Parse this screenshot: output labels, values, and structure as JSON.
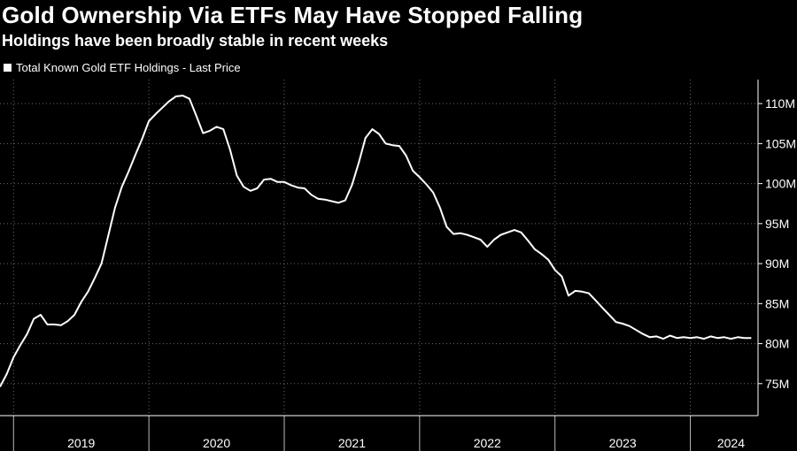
{
  "chart_data": {
    "type": "line",
    "title": "Gold Ownership Via ETFs May Have Stopped Falling",
    "subtitle": "Holdings have been broadly stable in recent weeks",
    "legend": {
      "position": "top-left",
      "entries": [
        "Total Known Gold ETF Holdings - Last Price"
      ]
    },
    "colors": {
      "background": "#000000",
      "line": "#ffffff",
      "grid": "#6b6b6b"
    },
    "grid": true,
    "y_axis": {
      "position": "right",
      "min": 71,
      "max": 113,
      "ticks": [
        75,
        80,
        85,
        90,
        95,
        100,
        105,
        110
      ],
      "tick_labels": [
        "75M",
        "80M",
        "85M",
        "90M",
        "95M",
        "100M",
        "105M",
        "110M"
      ]
    },
    "x_axis": {
      "min": 2018.9,
      "max": 2024.5,
      "year_boundaries": [
        2019,
        2020,
        2021,
        2022,
        2023,
        2024
      ],
      "labels": [
        {
          "text": "2019",
          "at": 2019.5
        },
        {
          "text": "2020",
          "at": 2020.5
        },
        {
          "text": "2021",
          "at": 2021.5
        },
        {
          "text": "2022",
          "at": 2022.5
        },
        {
          "text": "2023",
          "at": 2023.5
        },
        {
          "text": "2024",
          "at": 2024.3
        }
      ]
    },
    "series": [
      {
        "name": "Total Known Gold ETF Holdings - Last Price",
        "unit": "M",
        "x": [
          2018.9,
          2018.95,
          2019.0,
          2019.05,
          2019.1,
          2019.15,
          2019.2,
          2019.25,
          2019.3,
          2019.35,
          2019.4,
          2019.45,
          2019.5,
          2019.55,
          2019.6,
          2019.65,
          2019.7,
          2019.75,
          2019.8,
          2019.85,
          2019.9,
          2019.95,
          2020.0,
          2020.05,
          2020.1,
          2020.15,
          2020.2,
          2020.25,
          2020.3,
          2020.35,
          2020.4,
          2020.45,
          2020.5,
          2020.55,
          2020.6,
          2020.65,
          2020.7,
          2020.75,
          2020.8,
          2020.85,
          2020.9,
          2020.95,
          2021.0,
          2021.05,
          2021.1,
          2021.15,
          2021.2,
          2021.25,
          2021.3,
          2021.35,
          2021.4,
          2021.45,
          2021.5,
          2021.55,
          2021.6,
          2021.65,
          2021.7,
          2021.75,
          2021.8,
          2021.85,
          2021.9,
          2021.95,
          2022.0,
          2022.05,
          2022.1,
          2022.15,
          2022.2,
          2022.25,
          2022.3,
          2022.35,
          2022.4,
          2022.45,
          2022.5,
          2022.55,
          2022.6,
          2022.65,
          2022.7,
          2022.75,
          2022.8,
          2022.85,
          2022.9,
          2022.95,
          2023.0,
          2023.05,
          2023.1,
          2023.15,
          2023.2,
          2023.25,
          2023.3,
          2023.35,
          2023.4,
          2023.45,
          2023.5,
          2023.55,
          2023.6,
          2023.65,
          2023.7,
          2023.75,
          2023.8,
          2023.85,
          2023.9,
          2023.95,
          2024.0,
          2024.05,
          2024.1,
          2024.15,
          2024.2,
          2024.25,
          2024.3,
          2024.35,
          2024.4,
          2024.45
        ],
        "values": [
          74.6,
          76.2,
          78.3,
          79.8,
          81.2,
          83.1,
          83.6,
          82.4,
          82.4,
          82.3,
          82.8,
          83.6,
          85.2,
          86.5,
          88.2,
          90.0,
          93.5,
          97.0,
          99.6,
          101.5,
          103.6,
          105.6,
          107.8,
          108.7,
          109.5,
          110.3,
          110.9,
          111.0,
          110.6,
          108.5,
          106.3,
          106.6,
          107.1,
          106.8,
          104.2,
          101.0,
          99.6,
          99.1,
          99.4,
          100.5,
          100.6,
          100.2,
          100.2,
          99.8,
          99.5,
          99.4,
          98.6,
          98.1,
          98.0,
          97.8,
          97.6,
          97.9,
          99.8,
          102.6,
          105.7,
          106.8,
          106.2,
          105.0,
          104.8,
          104.7,
          103.5,
          101.6,
          100.8,
          99.9,
          98.9,
          97.0,
          94.6,
          93.7,
          93.8,
          93.6,
          93.3,
          93.0,
          92.1,
          93.0,
          93.6,
          93.9,
          94.2,
          93.9,
          92.9,
          91.8,
          91.2,
          90.5,
          89.2,
          88.4,
          86.0,
          86.6,
          86.5,
          86.3,
          85.4,
          84.5,
          83.6,
          82.7,
          82.5,
          82.2,
          81.7,
          81.2,
          80.8,
          80.9,
          80.6,
          81.0,
          80.7,
          80.8,
          80.7,
          80.8,
          80.6,
          80.9,
          80.7,
          80.8,
          80.6,
          80.8,
          80.7,
          80.7
        ]
      }
    ]
  }
}
